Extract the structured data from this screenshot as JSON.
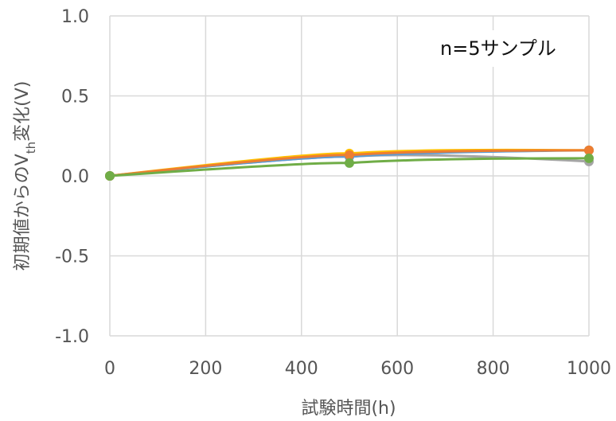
{
  "chart_data": {
    "type": "line",
    "title": "",
    "xlabel": "試験時間(h)",
    "ylabel": {
      "prefix": "初期値からのV",
      "subscript": "th",
      "suffix": "変化(V)"
    },
    "annotation": "n=5サンプル",
    "xlim": [
      0,
      1000
    ],
    "ylim": [
      -1.0,
      1.0
    ],
    "x_ticks": [
      0,
      200,
      400,
      600,
      800,
      1000
    ],
    "y_ticks": [
      1.0,
      0.5,
      0.0,
      -0.5,
      -1.0
    ],
    "y_tick_labels": [
      "1.0",
      "0.5",
      "0.0",
      "-0.5",
      "-1.0"
    ],
    "grid": true,
    "x": [
      0,
      500,
      1000
    ],
    "series": [
      {
        "color": "#A5A5A5",
        "values": [
          0.0,
          0.12,
          0.09
        ]
      },
      {
        "color": "#FFC000",
        "values": [
          0.0,
          0.14,
          0.16
        ]
      },
      {
        "color": "#5B9BD5",
        "values": [
          0.0,
          0.12,
          0.16
        ]
      },
      {
        "color": "#ED7D31",
        "values": [
          0.0,
          0.13,
          0.16
        ]
      },
      {
        "color": "#70AD47",
        "values": [
          0.0,
          0.08,
          0.11
        ]
      }
    ]
  }
}
